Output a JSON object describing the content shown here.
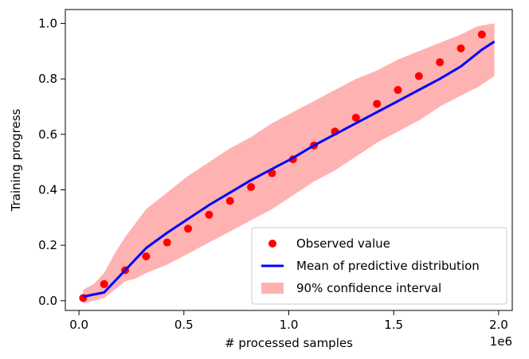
{
  "chart_data": {
    "type": "scatter",
    "title": "",
    "xlabel": "# processed samples",
    "ylabel": "Training progress",
    "x_offset_label": "1e6",
    "xlim": [
      -0.065,
      2.065
    ],
    "ylim": [
      -0.035,
      1.05
    ],
    "x_ticks": [
      0.0,
      0.5,
      1.0,
      1.5,
      2.0
    ],
    "x_tick_labels": [
      "0.0",
      "0.5",
      "1.0",
      "1.5",
      "2.0"
    ],
    "y_ticks": [
      0.0,
      0.2,
      0.4,
      0.6,
      0.8,
      1.0
    ],
    "y_tick_labels": [
      "0.0",
      "0.2",
      "0.4",
      "0.6",
      "0.8",
      "1.0"
    ],
    "grid": false,
    "legend_position": "lower-right",
    "legend": [
      "Observed value",
      "Mean of predictive distribution",
      "90% confidence interval"
    ],
    "series": [
      {
        "name": "Observed value",
        "kind": "scatter",
        "color": "#ff0000",
        "x": [
          0.02,
          0.12,
          0.22,
          0.32,
          0.42,
          0.52,
          0.62,
          0.72,
          0.82,
          0.92,
          1.02,
          1.12,
          1.22,
          1.32,
          1.42,
          1.52,
          1.62,
          1.72,
          1.82,
          1.92
        ],
        "y": [
          0.01,
          0.06,
          0.11,
          0.16,
          0.21,
          0.26,
          0.31,
          0.36,
          0.41,
          0.46,
          0.51,
          0.56,
          0.61,
          0.66,
          0.71,
          0.76,
          0.81,
          0.86,
          0.91,
          0.96
        ]
      },
      {
        "name": "Mean of predictive distribution",
        "kind": "line",
        "color": "#0000ff",
        "x": [
          0.02,
          0.12,
          0.22,
          0.32,
          0.42,
          0.52,
          0.62,
          0.72,
          0.82,
          0.92,
          1.02,
          1.12,
          1.22,
          1.32,
          1.42,
          1.52,
          1.62,
          1.72,
          1.82,
          1.92,
          1.98
        ],
        "y": [
          0.015,
          0.03,
          0.11,
          0.19,
          0.245,
          0.295,
          0.345,
          0.39,
          0.435,
          0.475,
          0.515,
          0.56,
          0.6,
          0.64,
          0.68,
          0.72,
          0.76,
          0.8,
          0.845,
          0.905,
          0.935
        ]
      },
      {
        "name": "90% confidence interval",
        "kind": "band",
        "color": "#ff0000",
        "alpha": 0.3,
        "x": [
          0.02,
          0.07,
          0.12,
          0.17,
          0.22,
          0.27,
          0.32,
          0.42,
          0.52,
          0.62,
          0.72,
          0.82,
          0.92,
          1.02,
          1.12,
          1.22,
          1.32,
          1.42,
          1.52,
          1.62,
          1.72,
          1.82,
          1.9,
          1.98
        ],
        "lower": [
          -0.01,
          0.0,
          0.01,
          0.04,
          0.07,
          0.08,
          0.1,
          0.13,
          0.17,
          0.21,
          0.25,
          0.29,
          0.33,
          0.38,
          0.43,
          0.47,
          0.52,
          0.57,
          0.61,
          0.65,
          0.7,
          0.74,
          0.77,
          0.81
        ],
        "upper": [
          0.04,
          0.06,
          0.1,
          0.17,
          0.23,
          0.28,
          0.33,
          0.39,
          0.45,
          0.5,
          0.55,
          0.59,
          0.64,
          0.68,
          0.72,
          0.76,
          0.8,
          0.83,
          0.87,
          0.9,
          0.93,
          0.96,
          0.99,
          1.0
        ]
      }
    ]
  }
}
